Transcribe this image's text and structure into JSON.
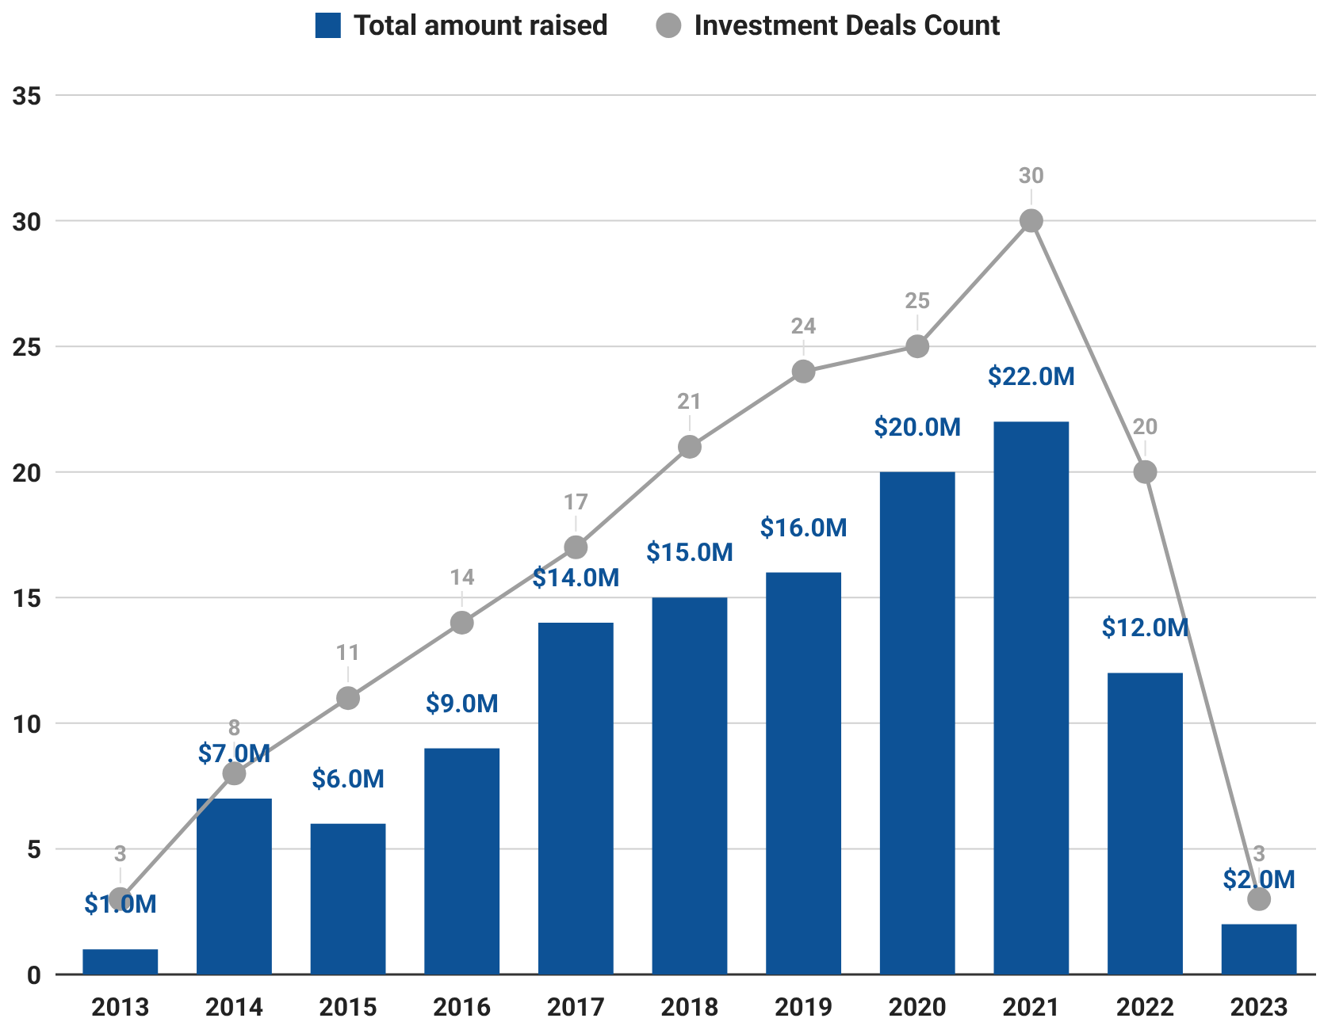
{
  "chart_data": {
    "type": "bar",
    "categories": [
      "2013",
      "2014",
      "2015",
      "2016",
      "2017",
      "2018",
      "2019",
      "2020",
      "2021",
      "2022",
      "2023"
    ],
    "series": [
      {
        "name": "Total amount raised",
        "color": "#0d5296",
        "values": [
          1,
          7,
          6,
          9,
          14,
          15,
          16,
          20,
          22,
          12,
          2
        ],
        "value_labels": [
          "$1.0M",
          "$7.0M",
          "$6.0M",
          "$9.0M",
          "$14.0M",
          "$15.0M",
          "$16.0M",
          "$20.0M",
          "$22.0M",
          "$12.0M",
          "$2.0M"
        ]
      },
      {
        "name": "Investment Deals Count",
        "type": "line",
        "color": "#9e9e9e",
        "marker": "circle",
        "values": [
          3,
          8,
          11,
          14,
          17,
          21,
          24,
          25,
          30,
          20,
          3
        ],
        "value_labels": [
          "3",
          "8",
          "11",
          "14",
          "17",
          "21",
          "24",
          "25",
          "30",
          "20",
          "3"
        ]
      }
    ],
    "ylim": [
      0,
      35
    ],
    "yticks": [
      0,
      5,
      10,
      15,
      20,
      25,
      30,
      35
    ],
    "grid": "y",
    "legend": "top"
  }
}
